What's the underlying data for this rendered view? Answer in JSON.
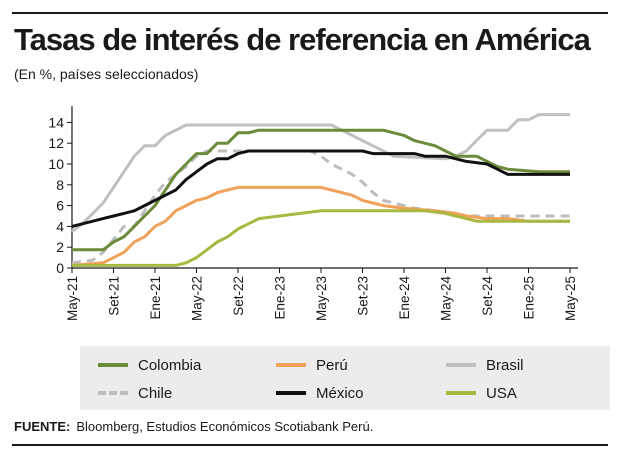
{
  "header": {
    "title": "Tasas de interés de referencia en América",
    "subtitle": "(En %, países seleccionados)"
  },
  "footer": {
    "source_label": "FUENTE:",
    "source_text": "Bloomberg, Estudios Económicos Scotiabank Perú."
  },
  "chart_data": {
    "type": "line",
    "title": "Tasas de interés de referencia en América",
    "subtitle": "(En %, países seleccionados)",
    "xlabel": "",
    "ylabel": "",
    "ylim": [
      0,
      15
    ],
    "yticks": [
      0,
      2,
      4,
      6,
      8,
      10,
      12,
      14
    ],
    "xticks": [
      "May-21",
      "Set-21",
      "Ene-21",
      "May-22",
      "Set-22",
      "Ene-23",
      "May-23",
      "Set-23",
      "Ene-24",
      "May-24",
      "Set-24",
      "Ene-25",
      "May-25"
    ],
    "x_start": "May-21",
    "legend_position": "bottom",
    "grid": false,
    "series": [
      {
        "name": "Colombia",
        "color": "#6b8a3a",
        "dash": false,
        "points": [
          [
            0,
            1.75
          ],
          [
            3,
            1.75
          ],
          [
            4,
            2.5
          ],
          [
            5,
            3.0
          ],
          [
            6,
            4.0
          ],
          [
            7,
            5.0
          ],
          [
            8,
            6.0
          ],
          [
            9,
            7.5
          ],
          [
            10,
            9.0
          ],
          [
            11,
            10.0
          ],
          [
            12,
            11.0
          ],
          [
            13,
            11.0
          ],
          [
            14,
            12.0
          ],
          [
            15,
            12.0
          ],
          [
            16,
            13.0
          ],
          [
            17,
            13.0
          ],
          [
            18,
            13.25
          ],
          [
            20,
            13.25
          ],
          [
            30,
            13.25
          ],
          [
            31,
            13.0
          ],
          [
            32,
            12.75
          ],
          [
            33,
            12.25
          ],
          [
            34,
            12.0
          ],
          [
            35,
            11.75
          ],
          [
            36,
            11.25
          ],
          [
            37,
            10.75
          ],
          [
            39,
            10.75
          ],
          [
            40,
            10.25
          ],
          [
            41,
            9.75
          ],
          [
            42,
            9.5
          ],
          [
            45,
            9.25
          ],
          [
            48,
            9.25
          ]
        ]
      },
      {
        "name": "Perú",
        "color": "#f0a25a",
        "dash": false,
        "points": [
          [
            0,
            0.25
          ],
          [
            3,
            0.5
          ],
          [
            4,
            1.0
          ],
          [
            5,
            1.5
          ],
          [
            6,
            2.5
          ],
          [
            7,
            3.0
          ],
          [
            8,
            4.0
          ],
          [
            9,
            4.5
          ],
          [
            10,
            5.5
          ],
          [
            11,
            6.0
          ],
          [
            12,
            6.5
          ],
          [
            13,
            6.75
          ],
          [
            14,
            7.25
          ],
          [
            15,
            7.5
          ],
          [
            16,
            7.75
          ],
          [
            20,
            7.75
          ],
          [
            24,
            7.75
          ],
          [
            25,
            7.5
          ],
          [
            26,
            7.25
          ],
          [
            27,
            7.0
          ],
          [
            28,
            6.5
          ],
          [
            29,
            6.25
          ],
          [
            30,
            6.0
          ],
          [
            32,
            5.75
          ],
          [
            35,
            5.5
          ],
          [
            37,
            5.25
          ],
          [
            38,
            5.0
          ],
          [
            40,
            4.75
          ],
          [
            42,
            4.75
          ],
          [
            44,
            4.5
          ],
          [
            48,
            4.5
          ]
        ]
      },
      {
        "name": "Brasil",
        "color": "#c0c0c0",
        "dash": false,
        "points": [
          [
            0,
            3.5
          ],
          [
            1,
            4.25
          ],
          [
            2,
            5.25
          ],
          [
            3,
            6.25
          ],
          [
            4,
            7.75
          ],
          [
            5,
            9.25
          ],
          [
            6,
            10.75
          ],
          [
            7,
            11.75
          ],
          [
            8,
            11.75
          ],
          [
            9,
            12.75
          ],
          [
            10,
            13.25
          ],
          [
            11,
            13.75
          ],
          [
            13,
            13.75
          ],
          [
            25,
            13.75
          ],
          [
            26,
            13.25
          ],
          [
            27,
            12.75
          ],
          [
            28,
            12.25
          ],
          [
            29,
            11.75
          ],
          [
            30,
            11.25
          ],
          [
            31,
            10.75
          ],
          [
            36,
            10.5
          ],
          [
            37,
            10.75
          ],
          [
            38,
            11.25
          ],
          [
            39,
            12.25
          ],
          [
            40,
            13.25
          ],
          [
            42,
            13.25
          ],
          [
            43,
            14.25
          ],
          [
            44,
            14.25
          ],
          [
            45,
            14.75
          ],
          [
            48,
            14.75
          ]
        ]
      },
      {
        "name": "Chile",
        "color": "#bdbdbd",
        "dash": true,
        "points": [
          [
            0,
            0.5
          ],
          [
            2,
            0.75
          ],
          [
            3,
            1.5
          ],
          [
            4,
            2.75
          ],
          [
            5,
            4.0
          ],
          [
            6,
            4.0
          ],
          [
            7,
            5.5
          ],
          [
            8,
            7.0
          ],
          [
            9,
            8.25
          ],
          [
            10,
            9.0
          ],
          [
            11,
            9.75
          ],
          [
            12,
            10.75
          ],
          [
            13,
            11.25
          ],
          [
            23,
            11.25
          ],
          [
            24,
            10.75
          ],
          [
            25,
            10.0
          ],
          [
            26,
            9.5
          ],
          [
            27,
            9.0
          ],
          [
            28,
            8.25
          ],
          [
            29,
            7.25
          ],
          [
            30,
            6.5
          ],
          [
            32,
            6.0
          ],
          [
            33,
            5.75
          ],
          [
            35,
            5.5
          ],
          [
            37,
            5.25
          ],
          [
            38,
            5.0
          ],
          [
            48,
            5.0
          ]
        ]
      },
      {
        "name": "México",
        "color": "#111111",
        "dash": false,
        "points": [
          [
            0,
            4.0
          ],
          [
            1,
            4.25
          ],
          [
            2,
            4.5
          ],
          [
            3,
            4.75
          ],
          [
            4,
            5.0
          ],
          [
            5,
            5.25
          ],
          [
            6,
            5.5
          ],
          [
            7,
            6.0
          ],
          [
            8,
            6.5
          ],
          [
            9,
            7.0
          ],
          [
            10,
            7.5
          ],
          [
            11,
            8.5
          ],
          [
            12,
            9.25
          ],
          [
            13,
            10.0
          ],
          [
            14,
            10.5
          ],
          [
            15,
            10.5
          ],
          [
            16,
            11.0
          ],
          [
            17,
            11.25
          ],
          [
            28,
            11.25
          ],
          [
            29,
            11.0
          ],
          [
            33,
            11.0
          ],
          [
            34,
            10.75
          ],
          [
            36,
            10.75
          ],
          [
            37,
            10.5
          ],
          [
            38,
            10.25
          ],
          [
            40,
            10.0
          ],
          [
            41,
            9.5
          ],
          [
            42,
            9.0
          ],
          [
            45,
            9.0
          ],
          [
            48,
            9.0
          ]
        ]
      },
      {
        "name": "USA",
        "color": "#a8b840",
        "dash": false,
        "points": [
          [
            0,
            0.25
          ],
          [
            10,
            0.25
          ],
          [
            11,
            0.5
          ],
          [
            12,
            1.0
          ],
          [
            13,
            1.75
          ],
          [
            14,
            2.5
          ],
          [
            15,
            3.0
          ],
          [
            16,
            3.75
          ],
          [
            17,
            4.25
          ],
          [
            18,
            4.75
          ],
          [
            20,
            5.0
          ],
          [
            22,
            5.25
          ],
          [
            24,
            5.5
          ],
          [
            28,
            5.5
          ],
          [
            34,
            5.5
          ],
          [
            36,
            5.25
          ],
          [
            37,
            5.0
          ],
          [
            38,
            4.75
          ],
          [
            39,
            4.5
          ],
          [
            48,
            4.5
          ]
        ]
      }
    ]
  }
}
